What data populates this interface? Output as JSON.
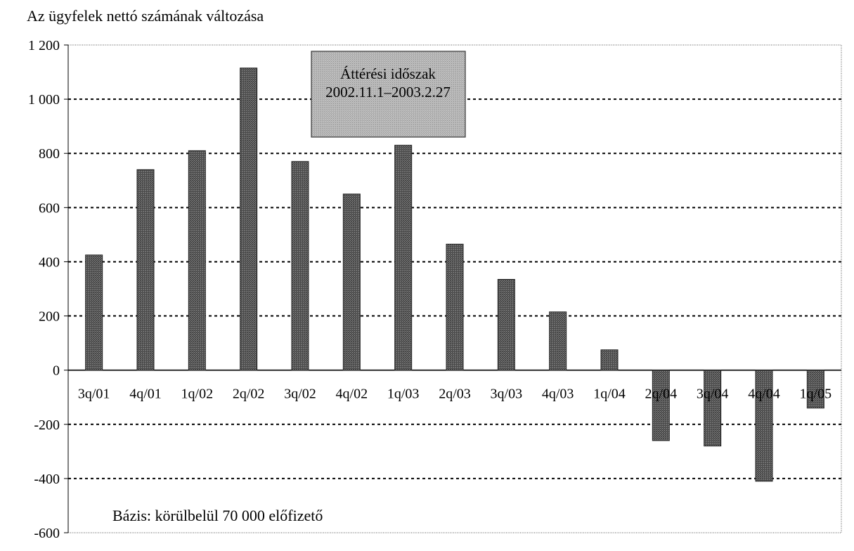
{
  "chart_data": {
    "type": "bar",
    "title": "Az ügyfelek nettó számának változása",
    "categories": [
      "3q/01",
      "4q/01",
      "1q/02",
      "2q/02",
      "3q/02",
      "4q/02",
      "1q/03",
      "2q/03",
      "3q/03",
      "4q/03",
      "1q/04",
      "2q/04",
      "3q/04",
      "4q/04",
      "1q/05"
    ],
    "values": [
      425,
      740,
      810,
      1115,
      770,
      650,
      830,
      465,
      335,
      215,
      75,
      -260,
      -280,
      -410,
      -140
    ],
    "ylim": [
      -600,
      1200
    ],
    "yticks": [
      -600,
      -400,
      -200,
      0,
      200,
      400,
      600,
      800,
      1000,
      1200
    ],
    "ytick_labels": [
      "-600",
      "-400",
      "-200",
      "0",
      "200",
      "400",
      "600",
      "800",
      "1 000",
      "1 200"
    ],
    "grid": true,
    "annotation": {
      "line1": "Áttérési időszak",
      "line2": "2002.11.1–2003.2.27"
    },
    "note": "Bázis: körülbelül 70 000 előfizető",
    "colors": {
      "bar": "#555555",
      "annotation_fill": "#b5b5b5"
    }
  }
}
